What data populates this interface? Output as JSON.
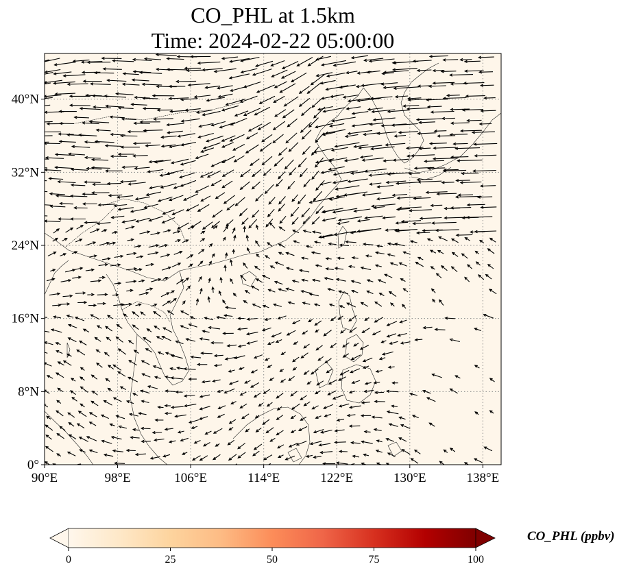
{
  "title_line1": "CO_PHL at 1.5km",
  "title_line2": "Time: 2024-02-22 05:00:00",
  "map": {
    "extent": {
      "lon_min": 90,
      "lon_max": 140,
      "lat_min": 0,
      "lat_max": 45
    },
    "background_color": "#fef6ea",
    "gridline_style": "dotted",
    "lon_ticks": [
      {
        "value": 90,
        "label": "90°E"
      },
      {
        "value": 98,
        "label": "98°E"
      },
      {
        "value": 106,
        "label": "106°E"
      },
      {
        "value": 114,
        "label": "114°E"
      },
      {
        "value": 122,
        "label": "122°E"
      },
      {
        "value": 130,
        "label": "130°E"
      },
      {
        "value": 138,
        "label": "138°E"
      }
    ],
    "lat_ticks": [
      {
        "value": 0,
        "label": "0°"
      },
      {
        "value": 8,
        "label": "8°N"
      },
      {
        "value": 16,
        "label": "16°N"
      },
      {
        "value": 24,
        "label": "24°N"
      },
      {
        "value": 32,
        "label": "32°N"
      },
      {
        "value": 40,
        "label": "40°N"
      }
    ],
    "layers": [
      "coastlines",
      "country-borders",
      "wind-vectors"
    ]
  },
  "colorbar": {
    "label": "CO_PHL (ppbv)",
    "colormap": "OrRd",
    "colors": [
      "#fff7ec",
      "#fee8c8",
      "#fdd49e",
      "#fdbb84",
      "#fc8d59",
      "#ef6548",
      "#d7301f",
      "#b30000",
      "#7f0000"
    ],
    "min": 0,
    "max": 100,
    "extend": "both",
    "ticks": [
      {
        "value": 0,
        "label": "0"
      },
      {
        "value": 25,
        "label": "25"
      },
      {
        "value": 50,
        "label": "50"
      },
      {
        "value": 75,
        "label": "75"
      },
      {
        "value": 100,
        "label": "100"
      }
    ]
  }
}
